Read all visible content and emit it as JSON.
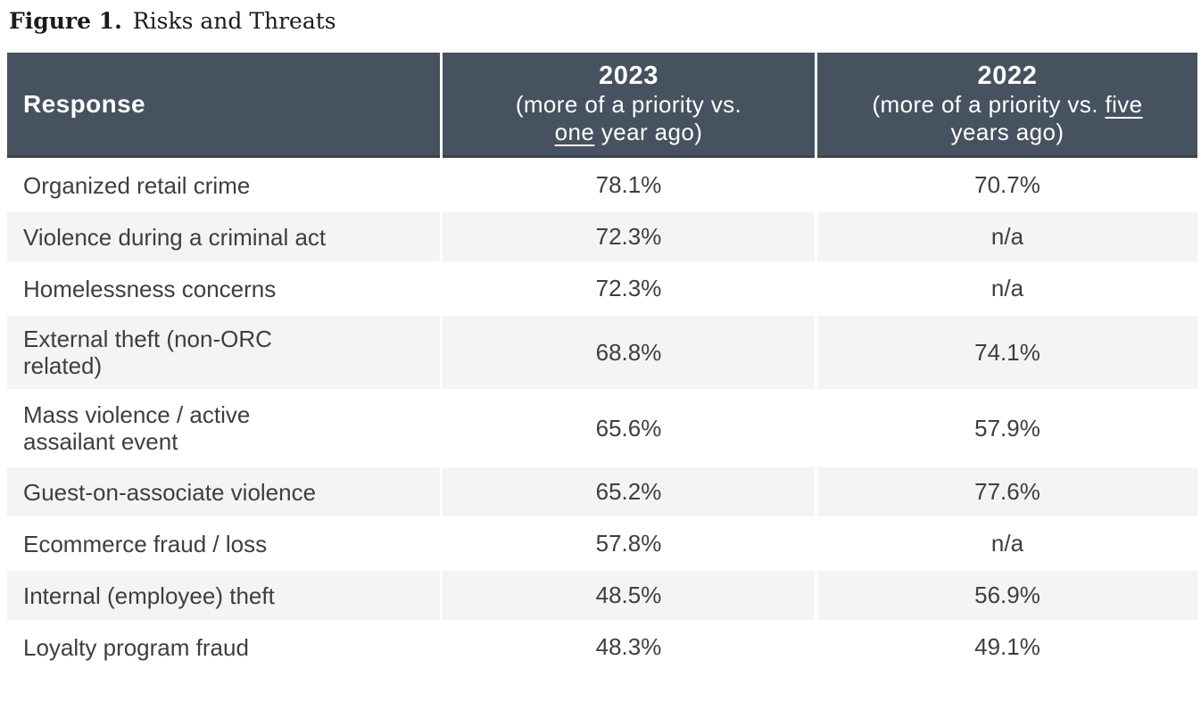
{
  "figure": {
    "label": "Figure 1.",
    "title": "Risks and Threats"
  },
  "table": {
    "header": {
      "response": "Response",
      "col2023": {
        "year": "2023",
        "sub_before": "(more of a priority vs.",
        "sub_underlined": "one",
        "sub_after": " year ago)"
      },
      "col2022": {
        "year": "2022",
        "sub_before": "(more of a priority vs. ",
        "sub_underlined": "five",
        "sub_after": "years ago)"
      }
    },
    "rows": [
      {
        "label": "Organized retail crime",
        "v2023": "78.1%",
        "v2022": "70.7%"
      },
      {
        "label": "Violence during a criminal act",
        "v2023": "72.3%",
        "v2022": "n/a"
      },
      {
        "label": "Homelessness concerns",
        "v2023": "72.3%",
        "v2022": "n/a"
      },
      {
        "label": "External theft (non-ORC related)",
        "v2023": "68.8%",
        "v2022": "74.1%"
      },
      {
        "label": "Mass violence / active assailant event",
        "v2023": "65.6%",
        "v2022": "57.9%"
      },
      {
        "label": "Guest-on-associate violence",
        "v2023": "65.2%",
        "v2022": "77.6%"
      },
      {
        "label": "Ecommerce fraud / loss",
        "v2023": "57.8%",
        "v2022": "n/a"
      },
      {
        "label": "Internal (employee) theft",
        "v2023": "48.5%",
        "v2022": "56.9%"
      },
      {
        "label": "Loyalty program fraud",
        "v2023": "48.3%",
        "v2022": "49.1%"
      }
    ],
    "colors": {
      "header_bg": "#475260",
      "header_border": "#3a434e",
      "header_text": "#ffffff",
      "stripe_bg": "#f4f4f2",
      "body_text": "#3e3e3e"
    }
  },
  "chart_data": {
    "type": "table",
    "title": "Figure 1. Risks and Threats",
    "columns": [
      "Response",
      "2023 (more of a priority vs. one year ago)",
      "2022 (more of a priority vs. five years ago)"
    ],
    "rows": [
      [
        "Organized retail crime",
        "78.1%",
        "70.7%"
      ],
      [
        "Violence during a criminal act",
        "72.3%",
        "n/a"
      ],
      [
        "Homelessness concerns",
        "72.3%",
        "n/a"
      ],
      [
        "External theft (non-ORC related)",
        "68.8%",
        "74.1%"
      ],
      [
        "Mass violence / active assailant event",
        "65.6%",
        "57.9%"
      ],
      [
        "Guest-on-associate violence",
        "65.2%",
        "77.6%"
      ],
      [
        "Ecommerce fraud / loss",
        "57.8%",
        "n/a"
      ],
      [
        "Internal (employee) theft",
        "48.5%",
        "56.9%"
      ],
      [
        "Loyalty program fraud",
        "48.3%",
        "49.1%"
      ]
    ],
    "values_2023": [
      78.1,
      72.3,
      72.3,
      68.8,
      65.6,
      65.2,
      57.8,
      48.5,
      48.3
    ],
    "values_2022": [
      70.7,
      null,
      null,
      74.1,
      57.9,
      77.6,
      null,
      56.9,
      49.1
    ]
  }
}
